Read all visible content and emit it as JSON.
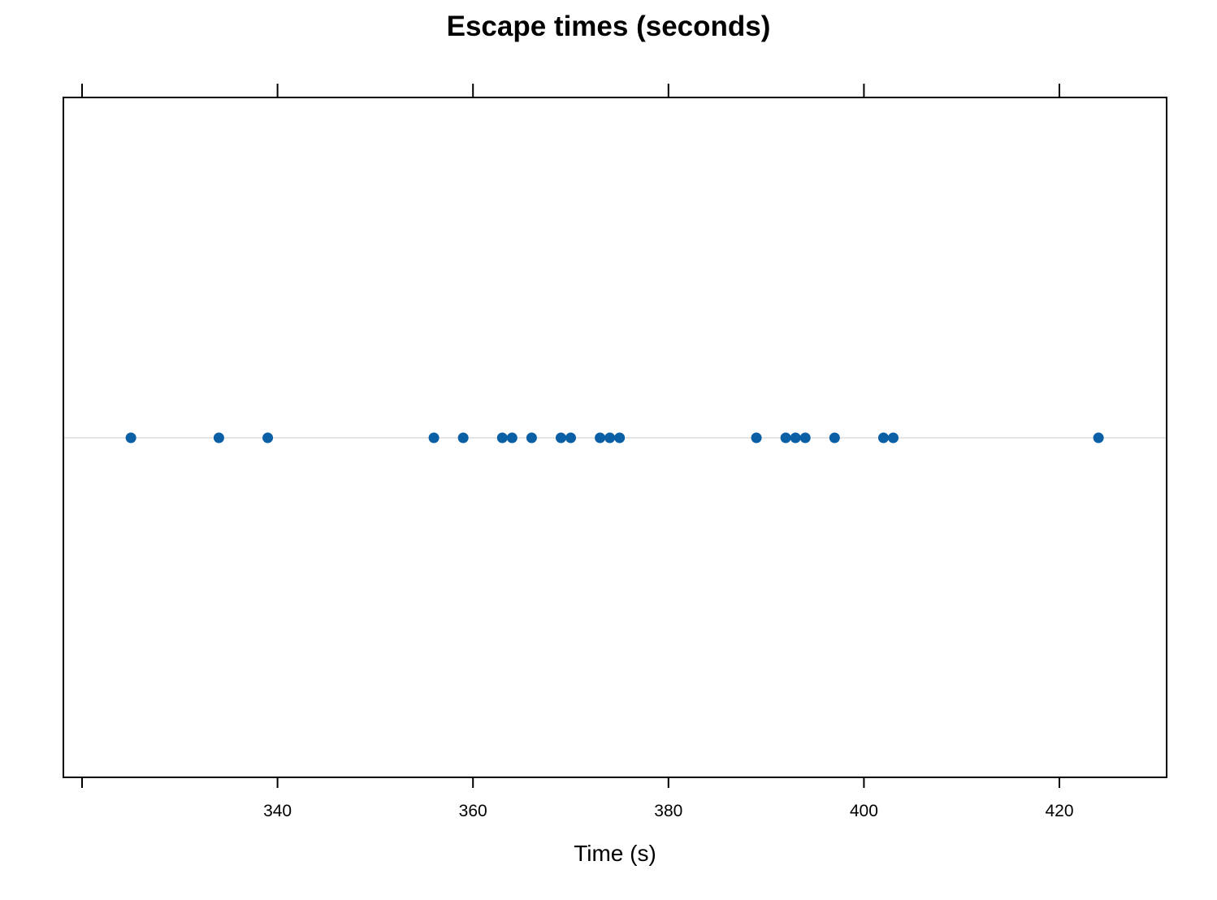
{
  "chart_data": {
    "type": "scatter",
    "title": "Escape times (seconds)",
    "xlabel": "Time (s)",
    "ylabel": "",
    "xlim": [
      318,
      431
    ],
    "x_ticks": [
      320,
      340,
      360,
      380,
      400,
      420
    ],
    "x_tick_labels": [
      "",
      "340",
      "360",
      "380",
      "400",
      "420"
    ],
    "grid": false,
    "legend": "none",
    "point_color": "#0b5fa5",
    "reference_line_color": "#dcdcdc",
    "series": [
      {
        "values": [
          325,
          334,
          339,
          356,
          359,
          363,
          364,
          366,
          369,
          370,
          373,
          374,
          375,
          389,
          392,
          393,
          394,
          397,
          402,
          403,
          424
        ]
      }
    ]
  }
}
